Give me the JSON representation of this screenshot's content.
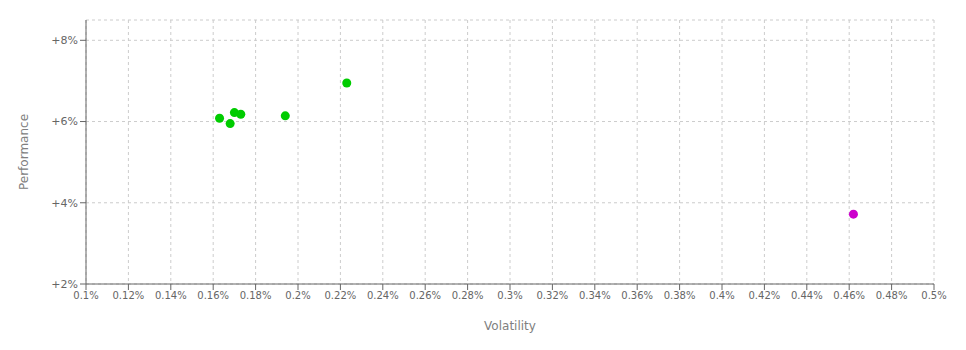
{
  "chart_data": {
    "type": "scatter",
    "x_label": "Volatility",
    "y_label": "Performance",
    "grid": true,
    "xlim": [
      0.001,
      0.005
    ],
    "ylim": [
      0.02,
      0.085
    ],
    "xticks": [
      {
        "value": 0.001,
        "label": "0.1%"
      },
      {
        "value": 0.0012,
        "label": "0.12%"
      },
      {
        "value": 0.0014,
        "label": "0.14%"
      },
      {
        "value": 0.0016,
        "label": "0.16%"
      },
      {
        "value": 0.0018,
        "label": "0.18%"
      },
      {
        "value": 0.002,
        "label": "0.2%"
      },
      {
        "value": 0.0022,
        "label": "0.22%"
      },
      {
        "value": 0.0024,
        "label": "0.24%"
      },
      {
        "value": 0.0026,
        "label": "0.26%"
      },
      {
        "value": 0.0028,
        "label": "0.28%"
      },
      {
        "value": 0.003,
        "label": "0.3%"
      },
      {
        "value": 0.0032,
        "label": "0.32%"
      },
      {
        "value": 0.0034,
        "label": "0.34%"
      },
      {
        "value": 0.0036,
        "label": "0.36%"
      },
      {
        "value": 0.0038,
        "label": "0.38%"
      },
      {
        "value": 0.004,
        "label": "0.4%"
      },
      {
        "value": 0.0042,
        "label": "0.42%"
      },
      {
        "value": 0.0044,
        "label": "0.44%"
      },
      {
        "value": 0.0046,
        "label": "0.46%"
      },
      {
        "value": 0.0048,
        "label": "0.48%"
      },
      {
        "value": 0.005,
        "label": "0.5%"
      }
    ],
    "yticks": [
      {
        "value": 0.02,
        "label": "+2%"
      },
      {
        "value": 0.04,
        "label": "+4%"
      },
      {
        "value": 0.06,
        "label": "+6%"
      },
      {
        "value": 0.08,
        "label": "+8%"
      }
    ],
    "series": [
      {
        "color": "#00cc00",
        "x": [
          0.00163,
          0.0017,
          0.00173,
          0.00168,
          0.00194,
          0.00223
        ],
        "y": [
          0.0608,
          0.0622,
          0.0618,
          0.0595,
          0.0614,
          0.0695
        ]
      },
      {
        "color": "#cc00cc",
        "x": [
          0.00462
        ],
        "y": [
          0.0372
        ]
      }
    ]
  }
}
